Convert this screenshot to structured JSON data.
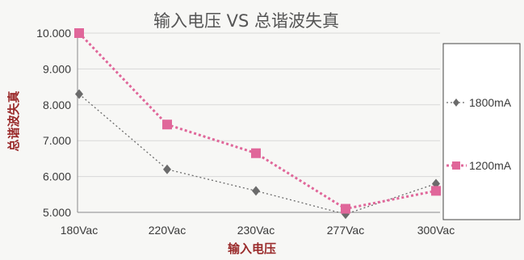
{
  "chart_data": {
    "type": "line",
    "title": "输入电压 VS 总谐波失真",
    "xlabel": "输入电压",
    "ylabel": "总谐波失真",
    "categories": [
      "180Vac",
      "220Vac",
      "230Vac",
      "277Vac",
      "300Vac"
    ],
    "ylim": [
      5.0,
      10.0
    ],
    "yticks": [
      "5.000",
      "6.000",
      "7.000",
      "8.000",
      "9.000",
      "10.000"
    ],
    "grid": true,
    "legend_position": "right",
    "series": [
      {
        "name": "1800mA",
        "values": [
          8.3,
          6.2,
          5.6,
          4.95,
          5.8
        ],
        "color": "#6b6b6b",
        "marker": "diamond",
        "line_style": "dotted-thin"
      },
      {
        "name": "1200mA",
        "values": [
          10.0,
          7.45,
          6.65,
          5.1,
          5.6
        ],
        "color": "#e0679a",
        "marker": "square",
        "line_style": "dotted-thick"
      }
    ]
  }
}
